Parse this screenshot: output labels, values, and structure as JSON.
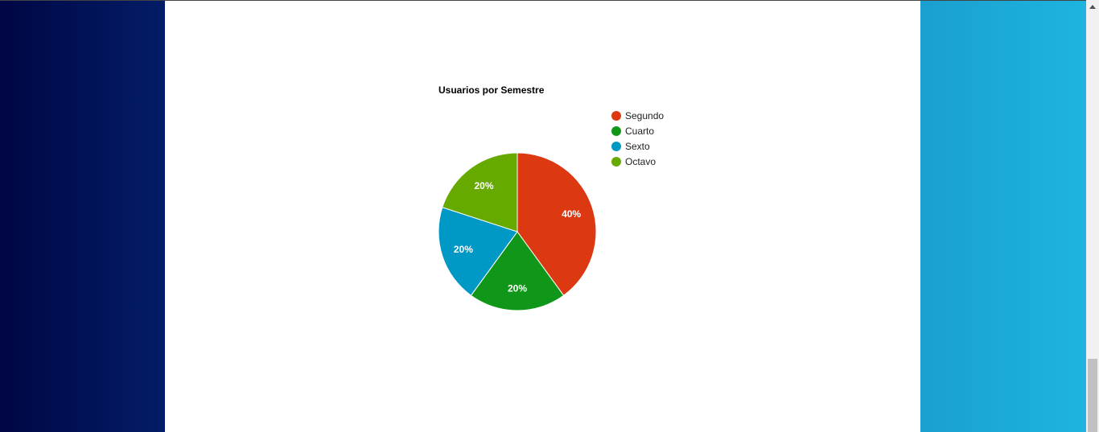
{
  "chart_data": {
    "type": "pie",
    "title": "Usuarios por Semestre",
    "categories": [
      "Segundo",
      "Cuarto",
      "Sexto",
      "Octavo"
    ],
    "values": [
      40,
      20,
      20,
      20
    ],
    "labels": [
      "40%",
      "20%",
      "20%",
      "20%"
    ],
    "colors": [
      "#dc3912",
      "#109618",
      "#0099c6",
      "#66aa00"
    ],
    "legend": "right"
  }
}
